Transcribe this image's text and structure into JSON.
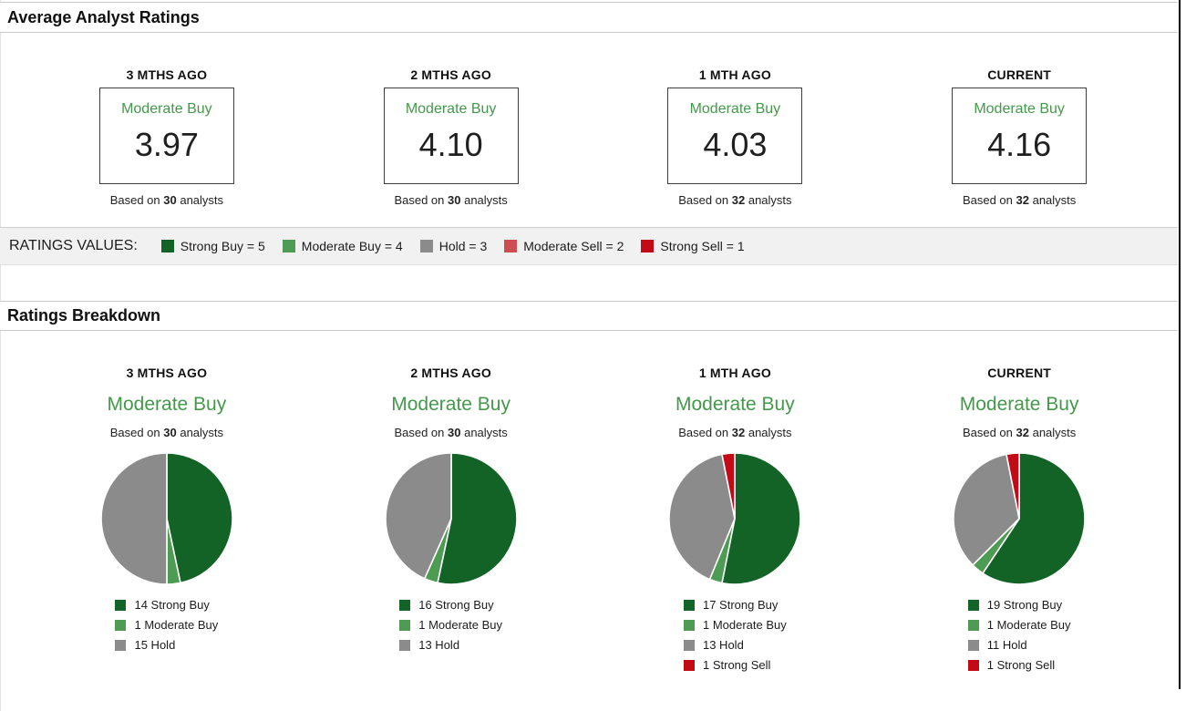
{
  "colors": {
    "strong_buy": "#136327",
    "moderate_buy": "#4e9b53",
    "hold": "#8b8b8b",
    "moderate_sell": "#cd4d52",
    "strong_sell": "#c30b17",
    "rating_green": "#43994a",
    "panel_border": "#cbcbcb",
    "values_bar_bg": "#f1f1f1"
  },
  "strings": {
    "based_on": "Based on",
    "analysts": "analysts"
  },
  "average_ratings": {
    "title": "Average Analyst Ratings",
    "columns": [
      {
        "period": "3 MTHS AGO",
        "rating_label": "Moderate Buy",
        "value": "3.97",
        "analyst_count": "30"
      },
      {
        "period": "2 MTHS AGO",
        "rating_label": "Moderate Buy",
        "value": "4.10",
        "analyst_count": "30"
      },
      {
        "period": "1 MTH AGO",
        "rating_label": "Moderate Buy",
        "value": "4.03",
        "analyst_count": "32"
      },
      {
        "period": "CURRENT",
        "rating_label": "Moderate Buy",
        "value": "4.16",
        "analyst_count": "32"
      }
    ]
  },
  "ratings_values": {
    "label": "RATINGS VALUES:",
    "items": [
      {
        "label": "Strong Buy = 5",
        "color_key": "strong_buy"
      },
      {
        "label": "Moderate Buy = 4",
        "color_key": "moderate_buy"
      },
      {
        "label": "Hold = 3",
        "color_key": "hold"
      },
      {
        "label": "Moderate Sell = 2",
        "color_key": "moderate_sell"
      },
      {
        "label": "Strong Sell = 1",
        "color_key": "strong_sell"
      }
    ]
  },
  "ratings_breakdown": {
    "title": "Ratings Breakdown",
    "columns": [
      {
        "period": "3 MTHS AGO",
        "rating_label": "Moderate Buy",
        "analyst_count": "30",
        "slices": [
          {
            "count": 14,
            "label": "Strong Buy",
            "color_key": "strong_buy"
          },
          {
            "count": 1,
            "label": "Moderate Buy",
            "color_key": "moderate_buy"
          },
          {
            "count": 15,
            "label": "Hold",
            "color_key": "hold"
          }
        ]
      },
      {
        "period": "2 MTHS AGO",
        "rating_label": "Moderate Buy",
        "analyst_count": "30",
        "slices": [
          {
            "count": 16,
            "label": "Strong Buy",
            "color_key": "strong_buy"
          },
          {
            "count": 1,
            "label": "Moderate Buy",
            "color_key": "moderate_buy"
          },
          {
            "count": 13,
            "label": "Hold",
            "color_key": "hold"
          }
        ]
      },
      {
        "period": "1 MTH AGO",
        "rating_label": "Moderate Buy",
        "analyst_count": "32",
        "slices": [
          {
            "count": 17,
            "label": "Strong Buy",
            "color_key": "strong_buy"
          },
          {
            "count": 1,
            "label": "Moderate Buy",
            "color_key": "moderate_buy"
          },
          {
            "count": 13,
            "label": "Hold",
            "color_key": "hold"
          },
          {
            "count": 1,
            "label": "Strong Sell",
            "color_key": "strong_sell"
          }
        ]
      },
      {
        "period": "CURRENT",
        "rating_label": "Moderate Buy",
        "analyst_count": "32",
        "slices": [
          {
            "count": 19,
            "label": "Strong Buy",
            "color_key": "strong_buy"
          },
          {
            "count": 1,
            "label": "Moderate Buy",
            "color_key": "moderate_buy"
          },
          {
            "count": 11,
            "label": "Hold",
            "color_key": "hold"
          },
          {
            "count": 1,
            "label": "Strong Sell",
            "color_key": "strong_sell"
          }
        ]
      }
    ]
  },
  "chart_data": [
    {
      "type": "table",
      "title": "Average Analyst Ratings",
      "categories": [
        "3 MTHS AGO",
        "2 MTHS AGO",
        "1 MTH AGO",
        "CURRENT"
      ],
      "values": [
        3.97,
        4.1,
        4.03,
        4.16
      ],
      "consensus_labels": [
        "Moderate Buy",
        "Moderate Buy",
        "Moderate Buy",
        "Moderate Buy"
      ],
      "analyst_counts": [
        30,
        30,
        32,
        32
      ],
      "scale": {
        "Strong Buy": 5,
        "Moderate Buy": 4,
        "Hold": 3,
        "Moderate Sell": 2,
        "Strong Sell": 1
      }
    },
    {
      "type": "pie",
      "title": "3 MTHS AGO",
      "labels": [
        "Strong Buy",
        "Moderate Buy",
        "Hold"
      ],
      "values": [
        14,
        1,
        15
      ]
    },
    {
      "type": "pie",
      "title": "2 MTHS AGO",
      "labels": [
        "Strong Buy",
        "Moderate Buy",
        "Hold"
      ],
      "values": [
        16,
        1,
        13
      ]
    },
    {
      "type": "pie",
      "title": "1 MTH AGO",
      "labels": [
        "Strong Buy",
        "Moderate Buy",
        "Hold",
        "Strong Sell"
      ],
      "values": [
        17,
        1,
        13,
        1
      ]
    },
    {
      "type": "pie",
      "title": "CURRENT",
      "labels": [
        "Strong Buy",
        "Moderate Buy",
        "Hold",
        "Strong Sell"
      ],
      "values": [
        19,
        1,
        11,
        1
      ]
    }
  ]
}
